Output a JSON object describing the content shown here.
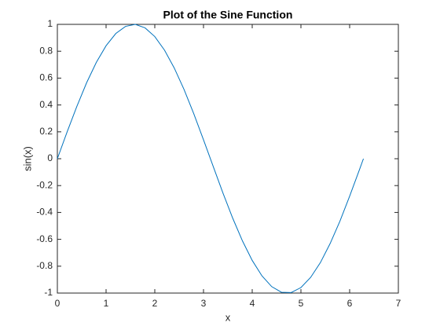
{
  "chart_data": {
    "type": "line",
    "title": "Plot of the Sine Function",
    "x_label": "x",
    "y_label": "sin(x)",
    "x": [
      0,
      0.2,
      0.4,
      0.6,
      0.8,
      1.0,
      1.2,
      1.4,
      1.6,
      1.8,
      2.0,
      2.2,
      2.4,
      2.6,
      2.8,
      3.0,
      3.2,
      3.4,
      3.6,
      3.8,
      4.0,
      4.2,
      4.4,
      4.6,
      4.8,
      5.0,
      5.2,
      5.4,
      5.6,
      5.8,
      6.0,
      6.2,
      6.283
    ],
    "series": [
      {
        "color": "#0072bd",
        "values": [
          0,
          0.199,
          0.389,
          0.565,
          0.717,
          0.841,
          0.932,
          0.985,
          1.0,
          0.974,
          0.909,
          0.808,
          0.675,
          0.516,
          0.335,
          0.141,
          -0.058,
          -0.256,
          -0.443,
          -0.612,
          -0.757,
          -0.872,
          -0.952,
          -0.994,
          -0.996,
          -0.959,
          -0.883,
          -0.773,
          -0.631,
          -0.465,
          -0.279,
          -0.083,
          0
        ]
      }
    ],
    "xlim": [
      0,
      7
    ],
    "xticks": [
      0,
      1,
      2,
      3,
      4,
      5,
      6,
      7
    ],
    "ylim": [
      -1,
      1
    ],
    "yticks": [
      -1,
      -0.8,
      -0.6,
      -0.4,
      -0.2,
      0,
      0.2,
      0.4,
      0.6,
      0.8,
      1
    ],
    "grid": false
  }
}
